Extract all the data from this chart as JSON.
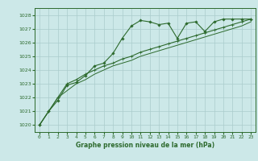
{
  "title": "Graphe pression niveau de la mer (hPa)",
  "bg_color": "#cce8e8",
  "grid_color": "#aacccc",
  "line_color": "#2d6a2d",
  "xlim": [
    -0.5,
    23.5
  ],
  "ylim": [
    1019.5,
    1028.5
  ],
  "yticks": [
    1020,
    1021,
    1022,
    1023,
    1024,
    1025,
    1026,
    1027,
    1028
  ],
  "xticks": [
    0,
    1,
    2,
    3,
    4,
    5,
    6,
    7,
    8,
    9,
    10,
    11,
    12,
    13,
    14,
    15,
    16,
    17,
    18,
    19,
    20,
    21,
    22,
    23
  ],
  "line1": [
    1020.0,
    1021.0,
    1021.8,
    1022.9,
    1023.1,
    1023.6,
    1024.3,
    1024.5,
    1025.2,
    1026.3,
    1027.2,
    1027.6,
    1027.5,
    1027.3,
    1027.4,
    1026.3,
    1027.4,
    1027.5,
    1026.8,
    1027.5,
    1027.7,
    1027.7,
    1027.7,
    1027.7
  ],
  "line2": [
    1020.0,
    1021.0,
    1022.0,
    1023.0,
    1023.3,
    1023.7,
    1024.0,
    1024.3,
    1024.5,
    1024.8,
    1025.0,
    1025.3,
    1025.5,
    1025.7,
    1025.9,
    1026.1,
    1026.3,
    1026.5,
    1026.7,
    1026.9,
    1027.1,
    1027.3,
    1027.5,
    1027.7
  ],
  "line3": [
    1020.0,
    1021.0,
    1022.0,
    1022.5,
    1023.0,
    1023.3,
    1023.7,
    1024.0,
    1024.3,
    1024.5,
    1024.7,
    1025.0,
    1025.2,
    1025.4,
    1025.6,
    1025.8,
    1026.0,
    1026.2,
    1026.4,
    1026.6,
    1026.8,
    1027.0,
    1027.2,
    1027.5
  ]
}
